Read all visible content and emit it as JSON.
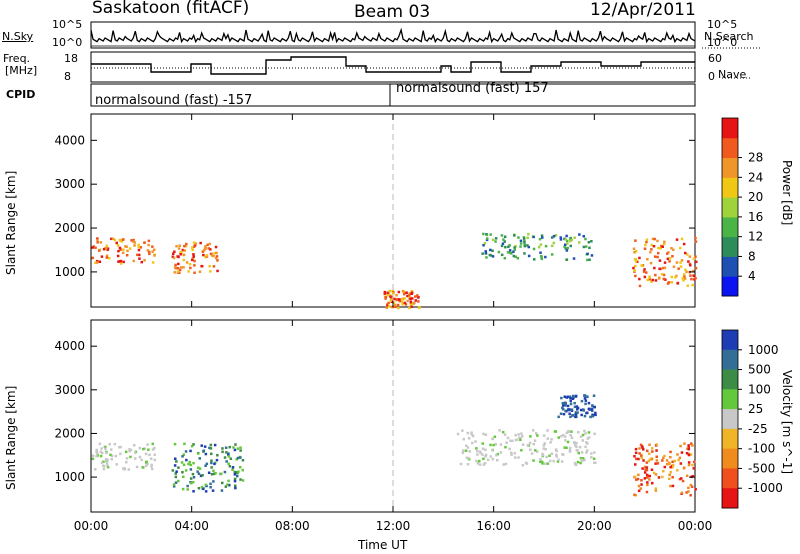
{
  "header": {
    "station": "Saskatoon (fitACF)",
    "beam": "Beam 03",
    "date": "12/Apr/2011"
  },
  "summary_panels": {
    "nsky_label": "N.Sky",
    "nsearch_label": "N.Search",
    "freq_label_line1": "Freq.",
    "freq_label_line2": "[MHz]",
    "nave_label": "Nave",
    "cpid_label": "CPID",
    "left_ticks": {
      "top": "10^5",
      "bottom": "10^0"
    },
    "right_ticks": {
      "top": "10^5",
      "bottom": "10^0"
    },
    "freq_ticks": [
      "18",
      "8"
    ],
    "nave_ticks": [
      "60",
      "0"
    ],
    "cpid_segments": [
      "normalsound (fast) -157",
      "normalsound (fast) 157"
    ]
  },
  "chart_data": [
    {
      "type": "heatmap",
      "name": "power",
      "ylabel": "Slant Range [km]",
      "yticks": [
        "1000",
        "2000",
        "3000",
        "4000"
      ],
      "ylim": [
        200,
        4600
      ],
      "xlim": [
        0,
        24
      ],
      "colorbar": {
        "label": "Power [dB]",
        "ticks": [
          "4",
          "8",
          "12",
          "16",
          "20",
          "24",
          "28"
        ],
        "colors": [
          "#0a14f0",
          "#1e50b4",
          "#2d8c5a",
          "#4bb446",
          "#a0d23c",
          "#f0c814",
          "#f09628",
          "#f05a1e",
          "#e61414"
        ]
      },
      "series": [
        {
          "x": [
            0.0,
            2.5
          ],
          "y": [
            1200,
            1800
          ],
          "value": "high"
        },
        {
          "x": [
            3.2,
            5.0
          ],
          "y": [
            1000,
            1700
          ],
          "value": "high"
        },
        {
          "x": [
            11.6,
            13.0
          ],
          "y": [
            200,
            600
          ],
          "value": "high"
        },
        {
          "x": [
            15.5,
            20.0
          ],
          "y": [
            1300,
            1900
          ],
          "value": "medium"
        },
        {
          "x": [
            21.5,
            24.0
          ],
          "y": [
            700,
            1800
          ],
          "value": "high"
        }
      ]
    },
    {
      "type": "heatmap",
      "name": "velocity",
      "ylabel": "Slant Range [km]",
      "yticks": [
        "1000",
        "2000",
        "3000",
        "4000"
      ],
      "ylim": [
        200,
        4600
      ],
      "xlim": [
        0,
        24
      ],
      "colorbar": {
        "label": "Velocity [m s^-1]",
        "ticks": [
          "1000",
          "500",
          "100",
          "25",
          "-25",
          "-100",
          "-500",
          "-1000"
        ],
        "colors": [
          "#1e3cb4",
          "#326e96",
          "#3c8c46",
          "#64c83c",
          "#c8c8c8",
          "#f0b428",
          "#f08c1e",
          "#f0501e",
          "#e61414"
        ]
      },
      "series": [
        {
          "x": [
            0.0,
            2.5
          ],
          "y": [
            1200,
            1800
          ],
          "value": "near-zero"
        },
        {
          "x": [
            3.2,
            6.0
          ],
          "y": [
            700,
            1800
          ],
          "value": "positive"
        },
        {
          "x": [
            14.5,
            20.0
          ],
          "y": [
            1300,
            2100
          ],
          "value": "near-zero"
        },
        {
          "x": [
            18.5,
            20.0
          ],
          "y": [
            2400,
            2900
          ],
          "value": "high-positive"
        },
        {
          "x": [
            21.5,
            24.0
          ],
          "y": [
            600,
            1800
          ],
          "value": "negative"
        }
      ]
    }
  ],
  "xaxis": {
    "label": "Time UT",
    "ticks": [
      "00:00",
      "04:00",
      "08:00",
      "12:00",
      "16:00",
      "20:00",
      "00:00"
    ]
  }
}
